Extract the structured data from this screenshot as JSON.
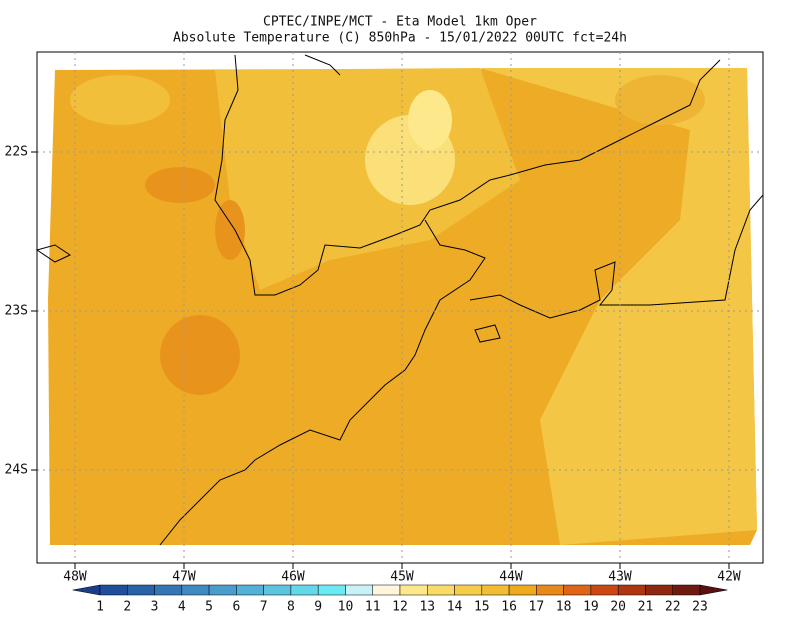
{
  "header": {
    "line1": "CPTEC/INPE/MCT -  Eta Model 1km Oper",
    "line2": "Absolute Temperature (C) 850hPa - 15/01/2022 00UTC fct=24h"
  },
  "map": {
    "lon_labels": [
      "48W",
      "47W",
      "46W",
      "45W",
      "44W",
      "43W",
      "42W"
    ],
    "lat_labels": [
      "22S",
      "23S",
      "24S"
    ]
  },
  "colorbar": {
    "levels": [
      1,
      2,
      3,
      4,
      5,
      6,
      7,
      8,
      9,
      10,
      11,
      12,
      13,
      14,
      15,
      16,
      17,
      18,
      19,
      20,
      21,
      22,
      23
    ],
    "colors": [
      "#1a3e8c",
      "#1f4e9a",
      "#2a62a8",
      "#3577b5",
      "#3f8ac1",
      "#4a9ccc",
      "#53b0d6",
      "#5cc4df",
      "#63d8e8",
      "#6aeaf2",
      "#c6f2f8",
      "#fff5dc",
      "#fde98b",
      "#f9dc67",
      "#f6cd4a",
      "#f2bd33",
      "#eea91c",
      "#e8881b",
      "#de6416",
      "#cc4812",
      "#b0360f",
      "#8f2810",
      "#6e1a10",
      "#5a0f10"
    ]
  }
}
